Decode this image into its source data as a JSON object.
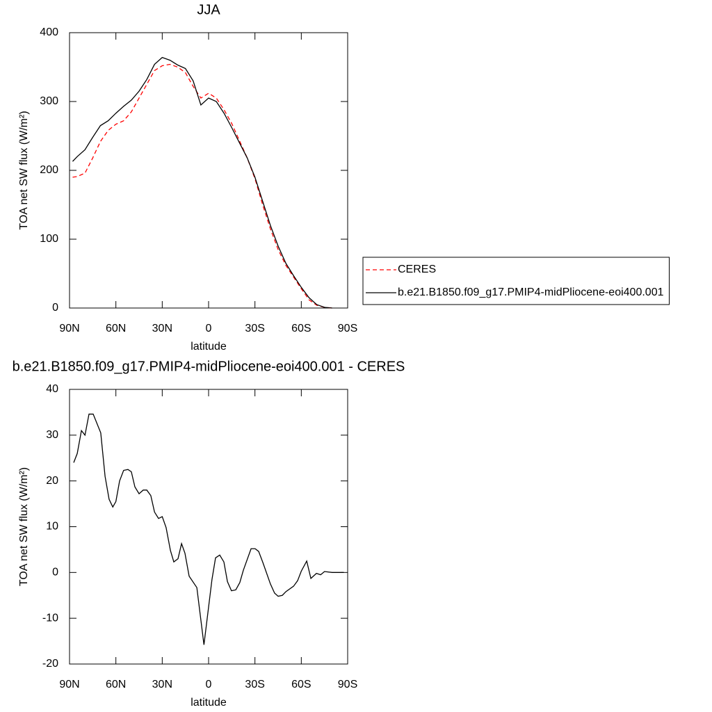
{
  "chart_data": [
    {
      "type": "line",
      "title": "JJA",
      "xlabel": "latitude",
      "ylabel": "TOA net SW flux (W/m²)",
      "x": [
        88,
        85,
        80,
        75,
        70,
        65,
        60,
        55,
        50,
        45,
        40,
        35,
        30,
        25,
        20,
        15,
        10,
        5,
        0,
        -5,
        -10,
        -15,
        -20,
        -25,
        -30,
        -35,
        -40,
        -45,
        -50,
        -55,
        -60,
        -65,
        -70,
        -75,
        -80
      ],
      "series": [
        {
          "name": "CERES",
          "color": "#ff0000",
          "dash": true,
          "values": [
            190,
            191,
            196,
            218,
            242,
            258,
            267,
            272,
            285,
            305,
            325,
            345,
            352,
            354,
            350,
            342,
            322,
            305,
            312,
            305,
            288,
            268,
            243,
            218,
            188,
            150,
            115,
            85,
            62,
            45,
            28,
            12,
            4,
            1,
            0
          ]
        },
        {
          "name": "b.e21.B1850.f09_g17.PMIP4-midPliocene-eoi400.001",
          "color": "#000000",
          "dash": false,
          "values": [
            213,
            220,
            230,
            248,
            265,
            272,
            283,
            293,
            302,
            315,
            332,
            354,
            364,
            360,
            353,
            348,
            330,
            295,
            305,
            300,
            283,
            262,
            240,
            218,
            190,
            155,
            120,
            90,
            65,
            47,
            30,
            15,
            5,
            1,
            0
          ]
        }
      ],
      "xlim": [
        90,
        -90
      ],
      "xticks": [
        {
          "value": 90,
          "label": "90N"
        },
        {
          "value": 60,
          "label": "60N"
        },
        {
          "value": 30,
          "label": "30N"
        },
        0,
        {
          "value": -30,
          "label": "30S"
        },
        {
          "value": -60,
          "label": "60S"
        },
        {
          "value": -90,
          "label": "90S"
        }
      ],
      "ylim": [
        0,
        400
      ],
      "yticks": [
        0,
        100,
        200,
        300,
        400
      ],
      "legend": "right"
    },
    {
      "type": "line",
      "title": "b.e21.B1850.f09_g17.PMIP4-midPliocene-eoi400.001 - CERES",
      "xlabel": "latitude",
      "ylabel": "TOA net SW flux (W/m²)",
      "x": [
        87.3,
        85,
        82.3,
        80,
        77.4,
        74.7,
        69.8,
        67,
        64.4,
        62,
        60,
        57.6,
        55,
        52.2,
        50,
        47.7,
        45,
        42.3,
        40,
        37.4,
        35,
        32.4,
        30,
        27.5,
        24.7,
        22.5,
        19.8,
        17.5,
        15.3,
        12.6,
        7.6,
        3,
        -2.2,
        -4.5,
        -7.2,
        -9.9,
        -12.2,
        -14.8,
        -17.6,
        -20.2,
        -22.5,
        -27.5,
        -30.1,
        -32.4,
        -35.1,
        -40,
        -42.7,
        -45,
        -47.7,
        -50,
        -55,
        -57.6,
        -60,
        -63.5,
        -66.2,
        -69.8,
        -72.5,
        -75,
        -80,
        -87.5
      ],
      "values": [
        24,
        26,
        31,
        30,
        34.6,
        34.6,
        30.5,
        21,
        16,
        14.3,
        15.5,
        20,
        22.3,
        22.5,
        22,
        18.7,
        17.2,
        18,
        18,
        16.8,
        13.2,
        11.8,
        12.2,
        9.8,
        4.8,
        2.3,
        3,
        6.3,
        4.2,
        -0.8,
        -3.3,
        -15.8,
        -1.5,
        3.2,
        3.8,
        2.3,
        -2,
        -4,
        -3.8,
        -2.2,
        0.5,
        5.2,
        5.2,
        4.6,
        2.2,
        -2.5,
        -4.5,
        -5.2,
        -5,
        -4.2,
        -3,
        -1.8,
        0.3,
        2.5,
        -1.3,
        -0.2,
        -0.5,
        0.2,
        0,
        0
      ],
      "color": "#000000",
      "xlim": [
        90,
        -90
      ],
      "xticks": [
        {
          "value": 90,
          "label": "90N"
        },
        {
          "value": 60,
          "label": "60N"
        },
        {
          "value": 30,
          "label": "30N"
        },
        0,
        {
          "value": -30,
          "label": "30S"
        },
        {
          "value": -60,
          "label": "60S"
        },
        {
          "value": -90,
          "label": "90S"
        }
      ],
      "ylim": [
        -20,
        40
      ],
      "yticks": [
        -20,
        -10,
        0,
        10,
        20,
        30,
        40
      ]
    }
  ]
}
